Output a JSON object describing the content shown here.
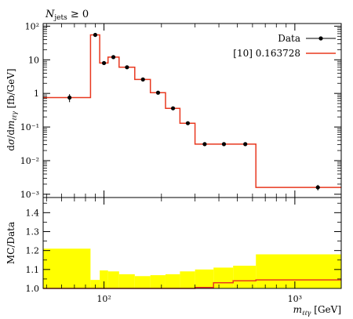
{
  "chart_data": [
    {
      "type": "line",
      "title": "N_jets ≥ 0",
      "ylabel": "dσ/dm_ℓℓγ [fb/GeV]",
      "xlabel": "",
      "x_log": true,
      "y_log": true,
      "xlim": [
        48,
        1750
      ],
      "ylim": [
        0.0008,
        120
      ],
      "x_ticks": [
        {
          "v": 100,
          "label": "10²"
        },
        {
          "v": 1000,
          "label": "10³"
        }
      ],
      "y_ticks": [
        {
          "v": 0.001,
          "label": "10⁻³"
        },
        {
          "v": 0.01,
          "label": "10⁻²"
        },
        {
          "v": 0.1,
          "label": "10⁻¹"
        },
        {
          "v": 1,
          "label": "1"
        },
        {
          "v": 10,
          "label": "10"
        },
        {
          "v": 100,
          "label": "10²"
        }
      ],
      "legend": {
        "position": "top-right",
        "data_label": "Data",
        "mc_label": "[10] 0.163728"
      },
      "bin_edges": [
        48,
        85,
        95,
        105,
        120,
        145,
        175,
        210,
        250,
        300,
        375,
        475,
        625,
        1750
      ],
      "series": [
        {
          "name": "Data",
          "x": [
            66,
            90,
            100,
            112,
            132,
            160,
            192,
            230,
            275,
            337,
            425,
            550,
            1320
          ],
          "y": [
            0.75,
            55,
            8.0,
            12.0,
            6.0,
            2.6,
            1.05,
            0.36,
            0.13,
            0.031,
            0.031,
            0.031,
            0.0016
          ],
          "err": [
            0.2,
            7,
            0.9,
            1.2,
            0.6,
            0.25,
            0.1,
            0.04,
            0.015,
            0.004,
            0.004,
            0.004,
            0.0003
          ]
        },
        {
          "name": "[10] 0.163728",
          "y": [
            0.75,
            55,
            8.0,
            12.0,
            6.0,
            2.6,
            1.05,
            0.36,
            0.13,
            0.031,
            0.031,
            0.031,
            0.0016
          ]
        }
      ]
    },
    {
      "type": "area",
      "ylabel": "MC/Data",
      "xlabel": "m_ℓℓγ [GeV]",
      "x_log": true,
      "xlim": [
        48,
        1750
      ],
      "ylim": [
        1.0,
        1.48
      ],
      "y_ticks": [
        {
          "v": 1.0,
          "label": "1.0"
        },
        {
          "v": 1.1,
          "label": "1.1"
        },
        {
          "v": 1.2,
          "label": "1.2"
        },
        {
          "v": 1.3,
          "label": "1.3"
        },
        {
          "v": 1.4,
          "label": "1.4"
        }
      ],
      "x_ticks": [
        {
          "v": 100,
          "label": "10²"
        },
        {
          "v": 1000,
          "label": "10³"
        }
      ],
      "band_upper": [
        1.21,
        1.045,
        1.095,
        1.09,
        1.075,
        1.065,
        1.07,
        1.075,
        1.09,
        1.1,
        1.11,
        1.12,
        1.18
      ],
      "ratio": [
        1.0,
        1.0,
        1.0,
        1.0,
        1.0,
        1.0,
        1.0,
        1.0,
        1.0,
        1.005,
        1.03,
        1.04,
        1.045
      ]
    }
  ],
  "colors": {
    "data_marker": "#000000",
    "mc_line": "#e8381f",
    "band": "#ffff00"
  }
}
